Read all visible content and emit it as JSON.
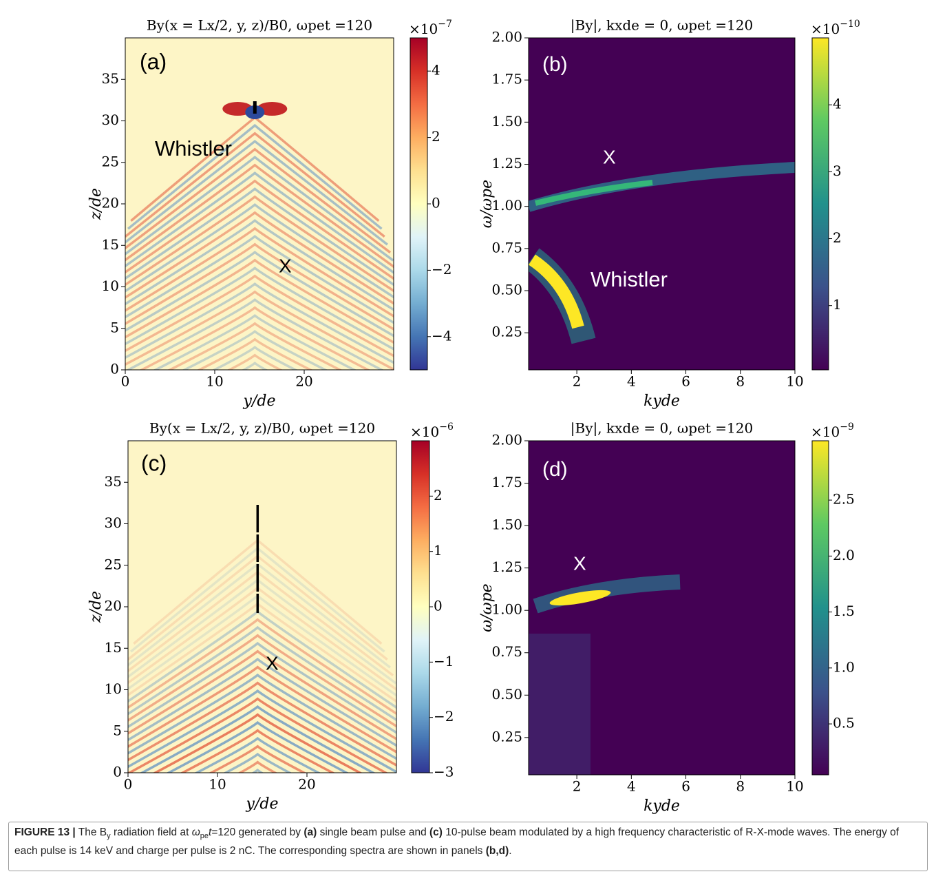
{
  "chart_data": [
    {
      "type": "heatmap",
      "title": "By(x = Lx/2, y, z)/B0,  ωpet =120",
      "xlabel": "y/de",
      "ylabel": "z/de",
      "xlim": [
        0,
        30
      ],
      "xticks": [
        0,
        10,
        20
      ],
      "ylim": [
        0,
        40
      ],
      "yticks": [
        0,
        5,
        10,
        15,
        20,
        25,
        30,
        35
      ],
      "colormap": "RdYlBu_r",
      "colorbar": {
        "base": "×10",
        "exponent": "−7",
        "lim": [
          -5,
          5
        ],
        "ticks": [
          {
            "value": -4,
            "label": "−4"
          },
          {
            "value": -2,
            "label": "−2"
          },
          0,
          2,
          4
        ]
      },
      "annotations": [
        "(a)",
        "Whistler",
        "X"
      ]
    },
    {
      "type": "heatmap",
      "title": "|By|,  kxde = 0,  ωpet =120",
      "xlabel": "kyde",
      "ylabel": "ω/ωpe",
      "xlim": [
        0.23,
        10
      ],
      "xticks": [
        2,
        4,
        6,
        8,
        10
      ],
      "ylim": [
        0.03,
        2.0
      ],
      "yticks": [
        {
          "value": 0.25,
          "label": "0.25"
        },
        {
          "value": 0.5,
          "label": "0.50"
        },
        {
          "value": 0.75,
          "label": "0.75"
        },
        {
          "value": 1,
          "label": "1.00"
        },
        {
          "value": 1.25,
          "label": "1.25"
        },
        {
          "value": 1.5,
          "label": "1.50"
        },
        {
          "value": 1.75,
          "label": "1.75"
        },
        {
          "value": 2,
          "label": "2.00"
        }
      ],
      "colormap": "viridis",
      "colorbar": {
        "base": "×10",
        "exponent": "−10",
        "lim": [
          0.04,
          5.0
        ],
        "ticks": [
          1,
          2,
          3,
          4
        ]
      },
      "annotations": [
        "(b)",
        "X",
        "Whistler"
      ]
    },
    {
      "type": "heatmap",
      "title": "By(x = Lx/2, y, z)/B0,  ωpet =120",
      "xlabel": "y/de",
      "ylabel": "z/de",
      "xlim": [
        0,
        30
      ],
      "xticks": [
        0,
        10,
        20
      ],
      "ylim": [
        0,
        40
      ],
      "yticks": [
        0,
        5,
        10,
        15,
        20,
        25,
        30,
        35
      ],
      "colormap": "RdYlBu_r",
      "colorbar": {
        "base": "×10",
        "exponent": "−6",
        "lim": [
          -3,
          3
        ],
        "ticks": [
          {
            "value": -3,
            "label": "−3"
          },
          {
            "value": -2,
            "label": "−2"
          },
          {
            "value": -1,
            "label": "−1"
          },
          0,
          1,
          2
        ]
      },
      "annotations": [
        "(c)",
        "X"
      ]
    },
    {
      "type": "heatmap",
      "title": "|By|,  kxde = 0,  ωpet =120",
      "xlabel": "kyde",
      "ylabel": "ω/ωpe",
      "xlim": [
        0.23,
        10
      ],
      "xticks": [
        2,
        4,
        6,
        8,
        10
      ],
      "ylim": [
        0.03,
        2.0
      ],
      "yticks": [
        {
          "value": 0.25,
          "label": "0.25"
        },
        {
          "value": 0.5,
          "label": "0.50"
        },
        {
          "value": 0.75,
          "label": "0.75"
        },
        {
          "value": 1,
          "label": "1.00"
        },
        {
          "value": 1.25,
          "label": "1.25"
        },
        {
          "value": 1.5,
          "label": "1.50"
        },
        {
          "value": 1.75,
          "label": "1.75"
        },
        {
          "value": 2,
          "label": "2.00"
        }
      ],
      "colormap": "viridis",
      "colorbar": {
        "base": "×10",
        "exponent": "−9",
        "lim": [
          0.045,
          3.03
        ],
        "ticks": [
          {
            "value": 0.5,
            "label": "0.5"
          },
          {
            "value": 1,
            "label": "1.0"
          },
          {
            "value": 1.5,
            "label": "1.5"
          },
          {
            "value": 2,
            "label": "2.0"
          },
          {
            "value": 2.5,
            "label": "2.5"
          }
        ]
      },
      "annotations": [
        "(d)",
        "X"
      ]
    }
  ],
  "caption": {
    "parts": [
      {
        "text": "FIGURE 13 |",
        "style": "bold"
      },
      {
        "text": " The B",
        "style": "plain"
      },
      {
        "text": "y",
        "style": "sub"
      },
      {
        "text": " radiation field at ",
        "style": "plain"
      },
      {
        "text": "ω",
        "style": "italic"
      },
      {
        "text": "pe",
        "style": "sub"
      },
      {
        "text": "t",
        "style": "italic"
      },
      {
        "text": "=120 generated by ",
        "style": "plain"
      },
      {
        "text": "(a)",
        "style": "bold"
      },
      {
        "text": " single beam pulse and ",
        "style": "plain"
      },
      {
        "text": "(c)",
        "style": "bold"
      },
      {
        "text": " 10-pulse beam modulated by a high frequency characteristic of R-X-mode waves. The energy of each pulse is 14 keV and charge per pulse is 2 nC. The corresponding spectra are shown in panels ",
        "style": "plain"
      },
      {
        "text": "(b,d)",
        "style": "bold"
      },
      {
        "text": ".",
        "style": "plain"
      }
    ]
  }
}
